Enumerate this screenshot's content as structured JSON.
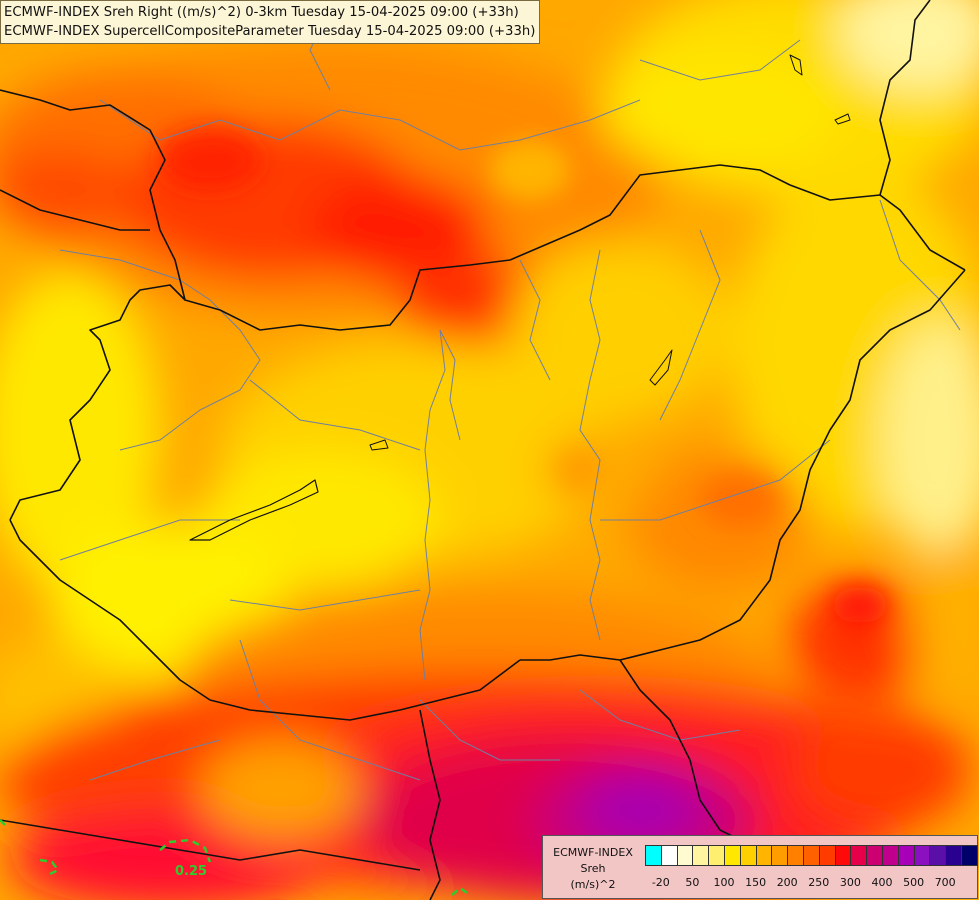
{
  "titles": {
    "line1": "ECMWF-INDEX Sreh Right ((m/s)^2) 0-3km Tuesday 15-04-2025 09:00 (+33h)",
    "line2": "ECMWF-INDEX SupercellCompositeParameter Tuesday 15-04-2025 09:00 (+33h)"
  },
  "legend": {
    "label_line1": "ECMWF-INDEX",
    "label_line2": "Sreh",
    "label_line3": "(m/s)^2",
    "ticks": [
      "-20",
      "50",
      "100",
      "150",
      "200",
      "250",
      "300",
      "400",
      "500",
      "700"
    ],
    "colors": [
      "#00ffff",
      "#ffffff",
      "#fffbd0",
      "#fff5a0",
      "#ffef70",
      "#ffe800",
      "#ffd000",
      "#ffb400",
      "#ff9c00",
      "#ff8000",
      "#ff6000",
      "#ff3c00",
      "#ff0a0a",
      "#e6004a",
      "#cc0070",
      "#c0008c",
      "#a800b8",
      "#8a10c0",
      "#5a10a8",
      "#2a0090",
      "#00006a"
    ]
  },
  "contour": {
    "label": "0.25",
    "color": "#2ecc2e"
  }
}
